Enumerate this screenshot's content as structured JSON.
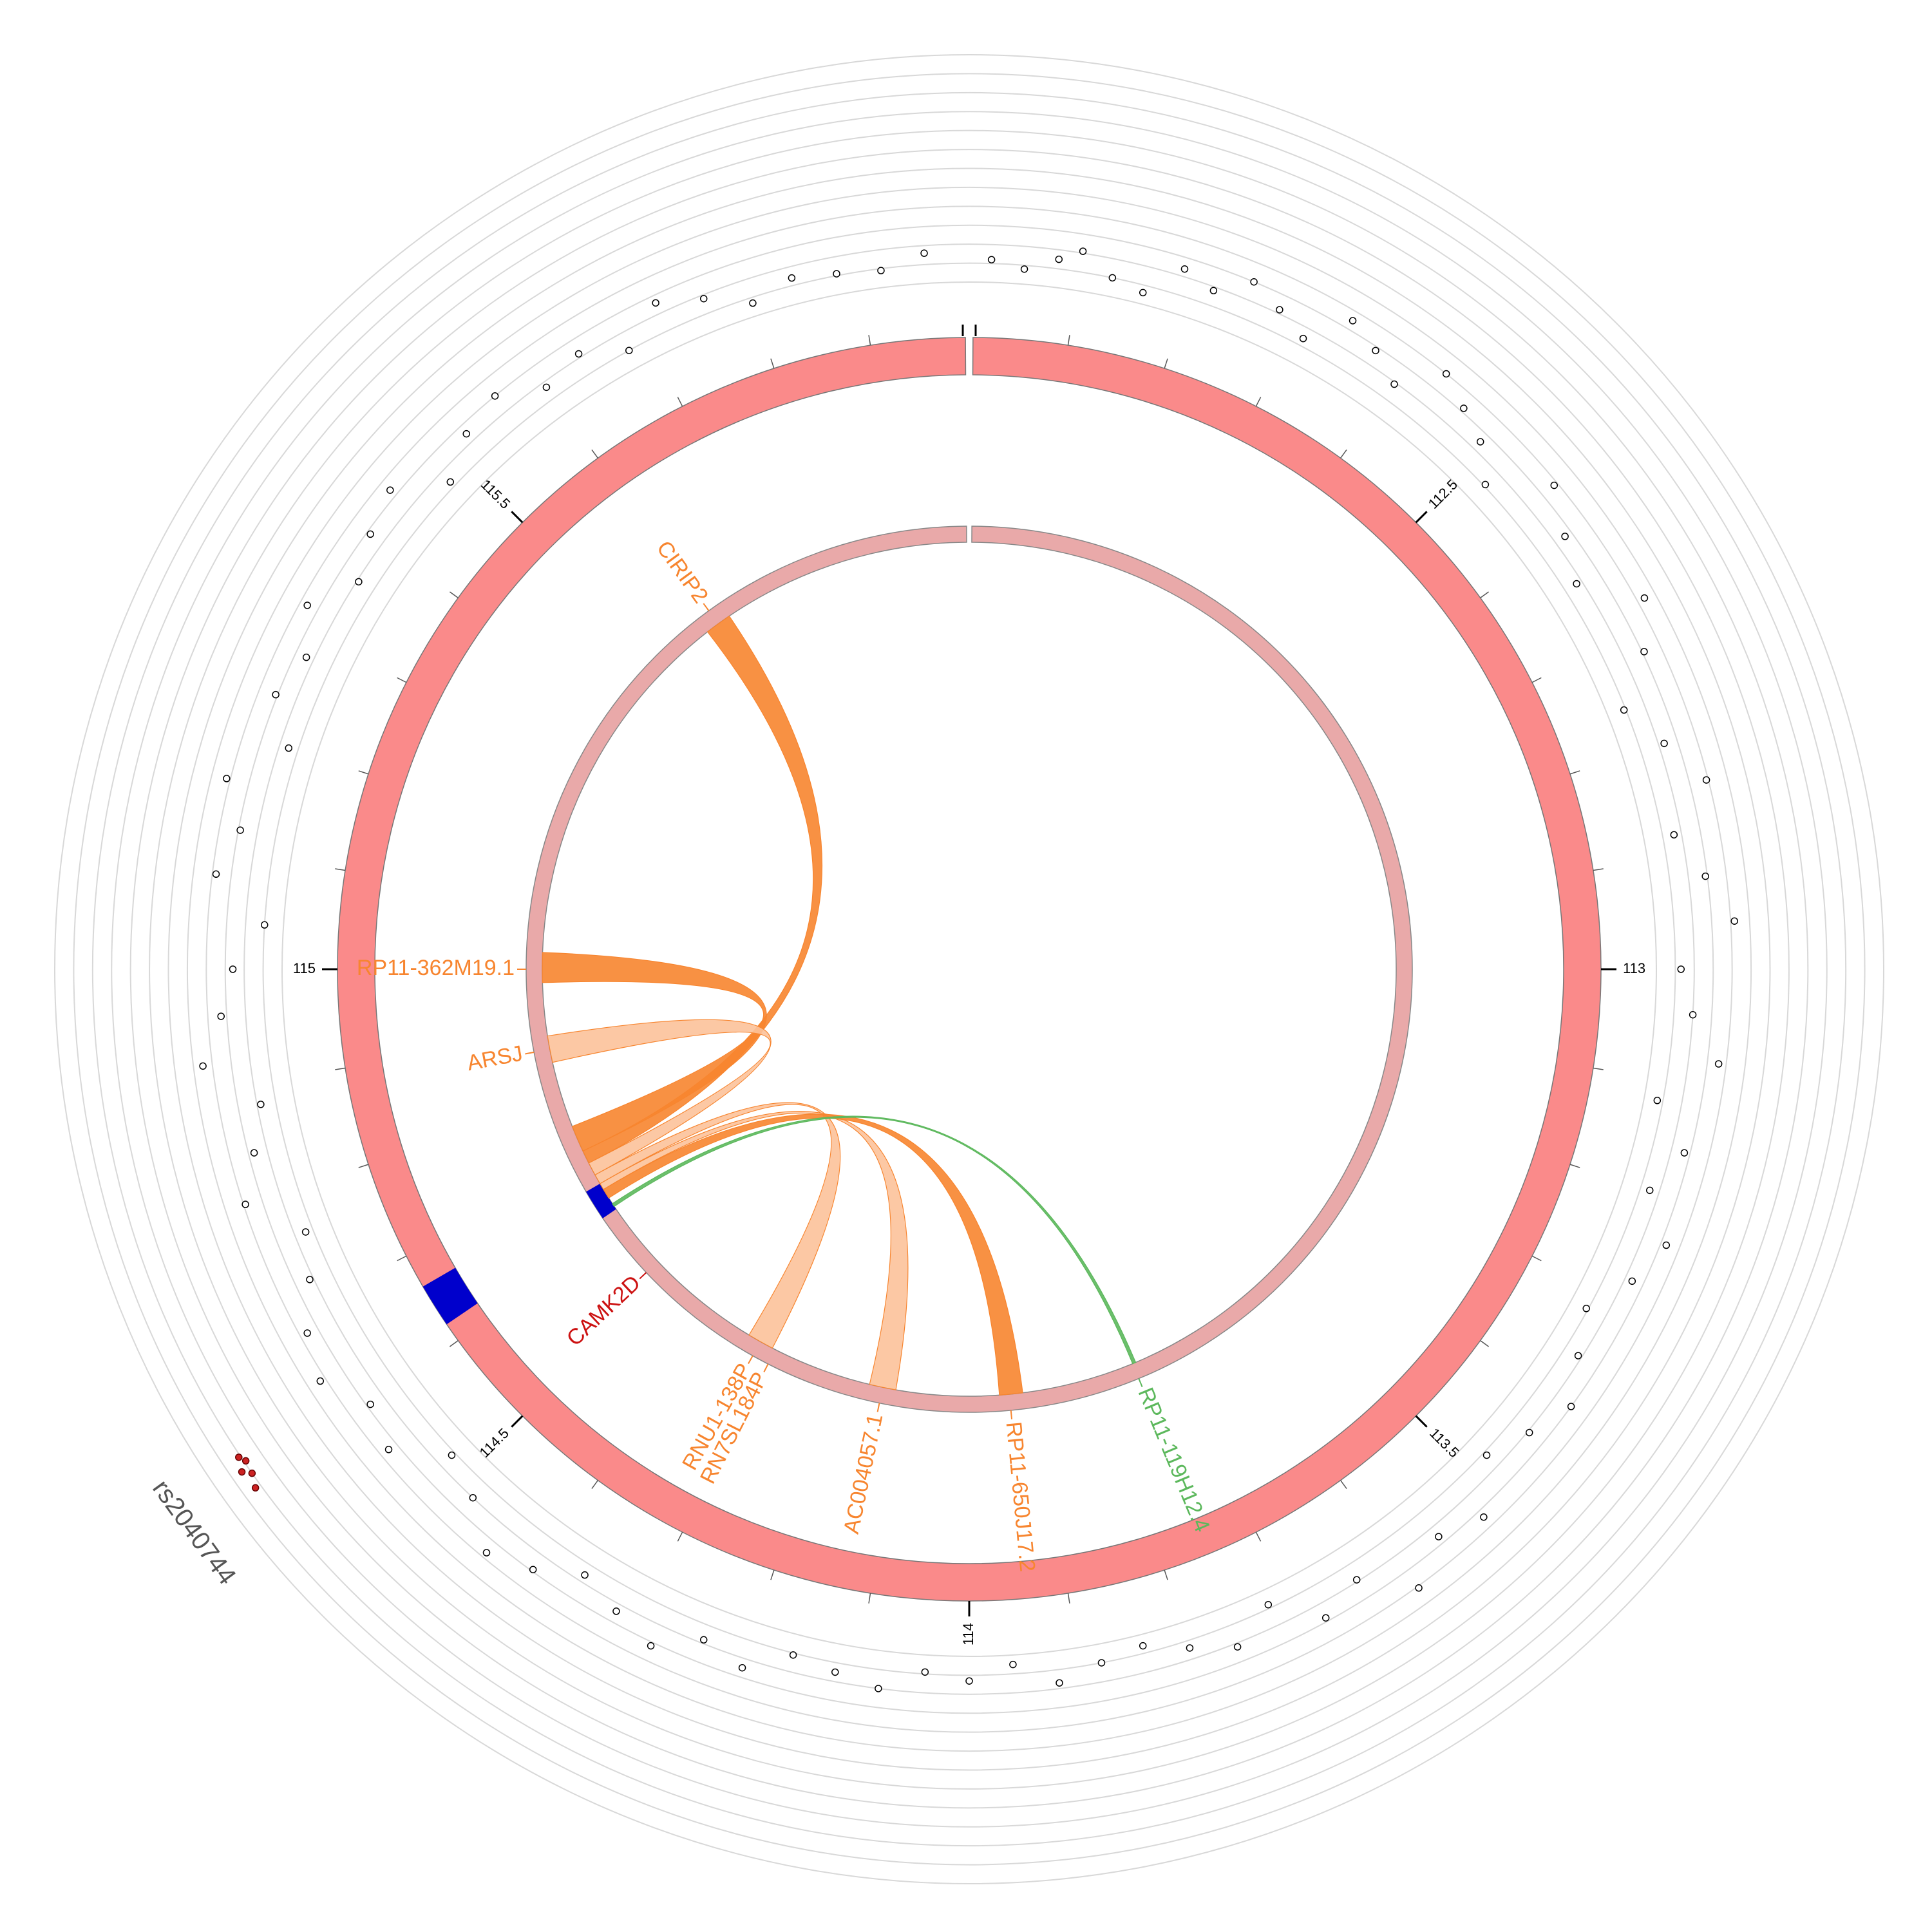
{
  "chart_data": {
    "type": "circos",
    "xlim": [
      112,
      116
    ],
    "xticks": [
      112.5,
      113,
      113.5,
      114,
      114.5,
      115,
      115.5
    ],
    "minor_xticks": [
      112.1,
      112.2,
      112.3,
      112.4,
      112.6,
      112.7,
      112.8,
      112.9,
      113.1,
      113.2,
      113.3,
      113.4,
      113.6,
      113.7,
      113.8,
      113.9,
      114.1,
      114.2,
      114.3,
      114.4,
      114.6,
      114.7,
      114.8,
      114.9,
      115.1,
      115.2,
      115.3,
      115.4,
      115.6,
      115.7,
      115.8,
      115.9
    ],
    "ring_color": "#fa8a8a",
    "inner_ring_color": "#e9a9a9",
    "highlight": {
      "range": [
        114.62,
        114.665
      ],
      "color": "#0000cc"
    },
    "ylim": [
      0,
      12
    ],
    "yticks": [
      0,
      1,
      2,
      3,
      4,
      5,
      6,
      7,
      8,
      9,
      10,
      11,
      12
    ],
    "grid": true,
    "series": [
      {
        "color": "#ffffff",
        "x": [
          112.02,
          112.05,
          112.08,
          112.1,
          112.13,
          112.16,
          112.19,
          112.22,
          112.25,
          112.28,
          112.31,
          112.34,
          112.37,
          112.4,
          112.43,
          112.46,
          112.49,
          112.52,
          112.56,
          112.6,
          112.64,
          112.68,
          112.72,
          112.76,
          112.8,
          112.84,
          112.88,
          112.92,
          112.96,
          113.0,
          113.04,
          113.08,
          113.12,
          113.16,
          113.2,
          113.24,
          113.28,
          113.32,
          113.36,
          113.4,
          113.44,
          113.48,
          113.52,
          113.56,
          113.6,
          113.64,
          113.68,
          113.72,
          113.76,
          113.8,
          113.84,
          113.88,
          113.92,
          113.96,
          114.0,
          114.04,
          114.08,
          114.12,
          114.16,
          114.2,
          114.24,
          114.28,
          114.32,
          114.36,
          114.4,
          114.44,
          114.48,
          114.52,
          114.56,
          114.6,
          114.64,
          114.68,
          114.72,
          114.76,
          114.8,
          114.84,
          114.88,
          114.92,
          114.96,
          115.0,
          115.04,
          115.08,
          115.12,
          115.16,
          115.2,
          115.24,
          115.28,
          115.32,
          115.36,
          115.4,
          115.44,
          115.48,
          115.52,
          115.56,
          115.6,
          115.64,
          115.68,
          115.72,
          115.76,
          115.8,
          115.84,
          115.88,
          115.92,
          115.96
        ],
        "values": [
          1.2,
          0.8,
          1.5,
          2.1,
          1.0,
          0.6,
          2.4,
          1.8,
          3.0,
          2.2,
          1.4,
          3.5,
          2.8,
          1.9,
          4.0,
          3.2,
          2.5,
          1.1,
          3.8,
          2.6,
          1.7,
          4.4,
          3.1,
          0.9,
          2.3,
          3.9,
          1.6,
          2.9,
          4.2,
          1.3,
          2.0,
          3.6,
          0.7,
          2.7,
          1.5,
          3.3,
          2.4,
          0.9,
          1.8,
          3.0,
          2.1,
          1.2,
          3.4,
          2.6,
          4.1,
          1.9,
          2.8,
          0.8,
          2.2,
          1.4,
          0.6,
          1.0,
          1.7,
          0.5,
          1.3,
          0.9,
          2.0,
          1.5,
          1.1,
          2.5,
          1.8,
          3.2,
          2.4,
          1.6,
          2.9,
          3.7,
          2.0,
          1.2,
          3.5,
          2.8,
          4.3,
          3.6,
          2.2,
          1.4,
          3.9,
          2.7,
          1.8,
          4.5,
          3.3,
          2.6,
          1.0,
          3.8,
          2.9,
          4.2,
          1.5,
          3.1,
          2.4,
          3.6,
          1.9,
          2.8,
          3.4,
          1.3,
          2.5,
          3.0,
          1.7,
          2.2,
          1.0,
          2.6,
          1.8,
          0.7,
          1.4,
          1.1,
          0.9,
          1.6
        ]
      },
      {
        "color": "#cc2222",
        "x": [
          114.6,
          114.61,
          114.615,
          114.62,
          114.625
        ],
        "values": [
          10.3,
          10.0,
          10.4,
          9.9,
          10.1
        ]
      }
    ],
    "annotation": "rs2040744",
    "genes": [
      {
        "name": "CIRIP2",
        "pos": 115.6,
        "color": "#f7852f"
      },
      {
        "name": "RP11-362M19.1",
        "pos": 115.0,
        "color": "#f7852f"
      },
      {
        "name": "ARSJ",
        "pos": 114.88,
        "color": "#f7852f"
      },
      {
        "name": "CAMK2D",
        "pos": 114.52,
        "color": "#cc1111"
      },
      {
        "name": "RNU1-138P",
        "pos": 114.325,
        "color": "#f7852f"
      },
      {
        "name": "RN7SL184P",
        "pos": 114.3,
        "color": "#f7852f"
      },
      {
        "name": "AC004057.1",
        "pos": 114.13,
        "color": "#f7852f"
      },
      {
        "name": "RP11-650J17.2",
        "pos": 113.94,
        "color": "#f7852f"
      },
      {
        "name": "RP11-119H12.4",
        "pos": 113.75,
        "color": "#5cb85c"
      }
    ],
    "links": [
      {
        "source": [
          114.7,
          114.72
        ],
        "target": [
          115.58,
          115.62
        ],
        "color": "#f7852f"
      },
      {
        "source": [
          114.72,
          114.76
        ],
        "target": [
          114.98,
          115.025
        ],
        "color": "#f7852f"
      },
      {
        "source": [
          114.68,
          114.7
        ],
        "target": [
          114.86,
          114.9
        ],
        "color": "#fcc29a"
      },
      {
        "source": [
          114.665,
          114.68
        ],
        "target": [
          114.305,
          114.345
        ],
        "color": "#fcc29a"
      },
      {
        "source": [
          114.655,
          114.665
        ],
        "target": [
          114.11,
          114.15
        ],
        "color": "#fcc29a"
      },
      {
        "source": [
          114.64,
          114.655
        ],
        "target": [
          113.92,
          113.955
        ],
        "color": "#f7852f"
      },
      {
        "source": [
          114.625,
          114.63
        ],
        "target": [
          113.745,
          113.75
        ],
        "color": "#5cb85c"
      }
    ]
  }
}
